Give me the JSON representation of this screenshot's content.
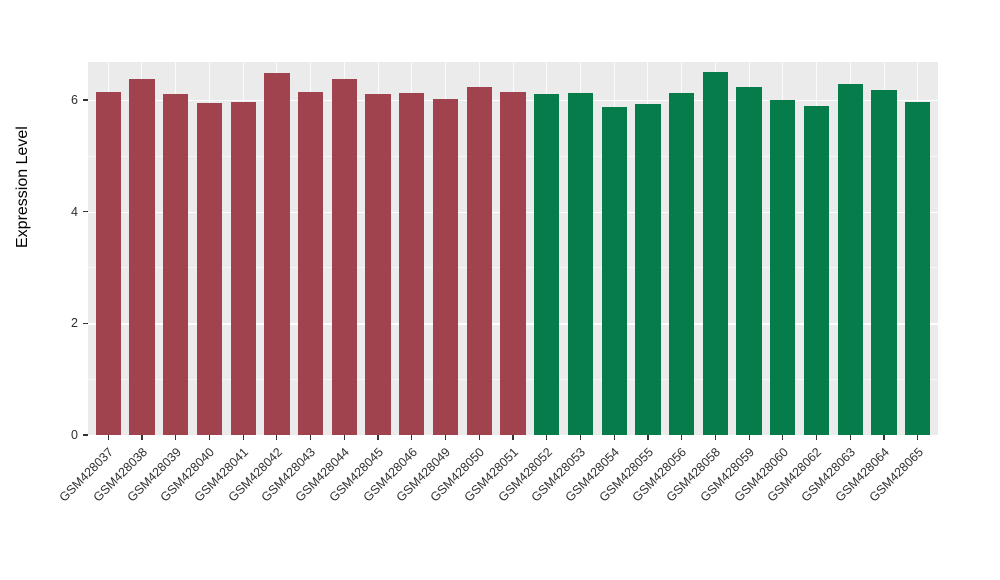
{
  "chart_data": {
    "type": "bar",
    "title": "",
    "xlabel": "",
    "ylabel": "Expression Level",
    "ylim": [
      0,
      6.68
    ],
    "yticks": [
      0,
      2,
      4,
      6
    ],
    "yticks_minor": [
      1,
      3,
      5
    ],
    "grid": true,
    "legend_position": "none",
    "panel_background": "#EBEBEB",
    "grid_color": "#FFFFFF",
    "categories": [
      "GSM428037",
      "GSM428038",
      "GSM428039",
      "GSM428040",
      "GSM428041",
      "GSM428042",
      "GSM428043",
      "GSM428044",
      "GSM428045",
      "GSM428046",
      "GSM428049",
      "GSM428050",
      "GSM428051",
      "GSM428052",
      "GSM428053",
      "GSM428054",
      "GSM428055",
      "GSM428056",
      "GSM428058",
      "GSM428059",
      "GSM428060",
      "GSM428062",
      "GSM428063",
      "GSM428064",
      "GSM428065"
    ],
    "values": [
      6.15,
      6.38,
      6.1,
      5.95,
      5.97,
      6.48,
      6.15,
      6.38,
      6.1,
      6.12,
      6.02,
      6.23,
      6.15,
      6.1,
      6.12,
      5.88,
      5.93,
      6.12,
      6.5,
      6.23,
      6.0,
      5.9,
      6.28,
      6.18,
      5.97
    ],
    "bar_groups": [
      0,
      0,
      0,
      0,
      0,
      0,
      0,
      0,
      0,
      0,
      0,
      0,
      0,
      1,
      1,
      1,
      1,
      1,
      1,
      1,
      1,
      1,
      1,
      1,
      1
    ],
    "group_colors": [
      "#A0434F",
      "#067C4B"
    ]
  }
}
